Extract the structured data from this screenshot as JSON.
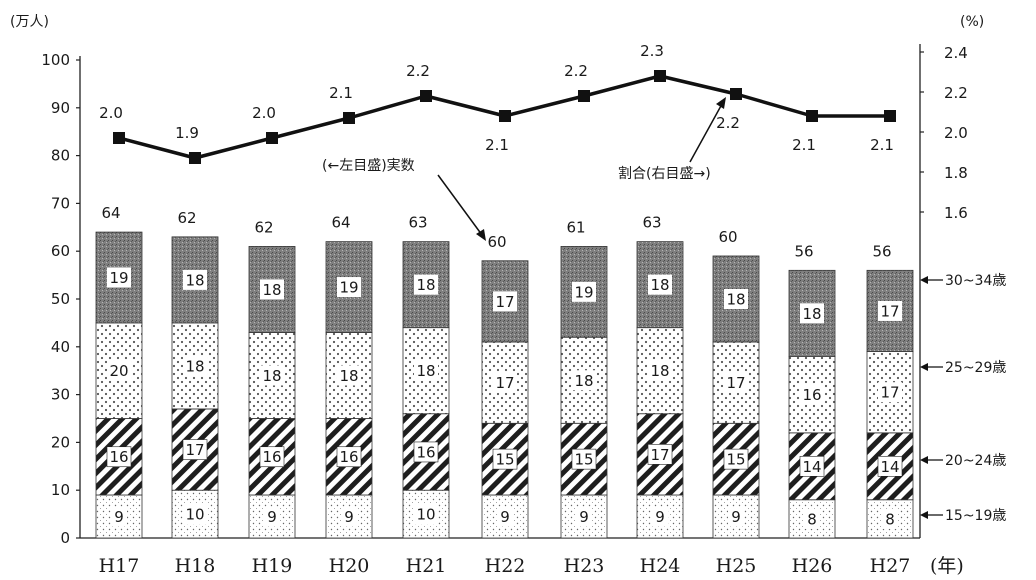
{
  "chart_data": {
    "type": "bar",
    "categories": [
      "H17",
      "H18",
      "H19",
      "H20",
      "H21",
      "H22",
      "H23",
      "H24",
      "H25",
      "H26",
      "H27"
    ],
    "x_unit": "(年)",
    "y_left": {
      "unit": "(万人)",
      "range": [
        0,
        100
      ],
      "ticks": [
        "0",
        "10",
        "20",
        "30",
        "40",
        "50",
        "60",
        "70",
        "80",
        "90",
        "100"
      ]
    },
    "y_right": {
      "unit": "(%)",
      "range": [
        1.5,
        2.4
      ],
      "ticks": [
        "1.6",
        "1.8",
        "2.0",
        "2.2",
        "2.4"
      ]
    },
    "series": [
      {
        "name": "15~19歳",
        "values": [
          9,
          10,
          9,
          9,
          10,
          9,
          9,
          9,
          9,
          8,
          8
        ],
        "color": "#ffffff",
        "pattern": "fine-dots"
      },
      {
        "name": "20~24歳",
        "values": [
          16,
          17,
          16,
          16,
          16,
          15,
          15,
          17,
          15,
          14,
          14
        ],
        "color": "#333333",
        "pattern": "diagonal-stripes"
      },
      {
        "name": "25~29歳",
        "values": [
          20,
          18,
          18,
          18,
          18,
          17,
          18,
          18,
          17,
          16,
          17
        ],
        "color": "#ffffff",
        "pattern": "dots"
      },
      {
        "name": "30~34歳",
        "values": [
          19,
          18,
          18,
          19,
          18,
          17,
          19,
          18,
          18,
          18,
          17
        ],
        "color": "#8c8c8c",
        "pattern": "dark-stipple"
      }
    ],
    "totals": [
      64,
      62,
      62,
      64,
      63,
      60,
      61,
      63,
      60,
      56,
      56
    ],
    "ratio_series": {
      "values": [
        2.0,
        1.9,
        2.0,
        2.1,
        2.2,
        2.1,
        2.2,
        2.3,
        2.2,
        2.1,
        2.1
      ],
      "labels": [
        "2.0",
        "1.9",
        "2.0",
        "2.1",
        "2.2",
        "2.1",
        "2.2",
        "2.3",
        "2.2",
        "2.1",
        "2.1"
      ],
      "plot_values": [
        1.97,
        1.87,
        1.97,
        2.07,
        2.18,
        2.08,
        2.18,
        2.28,
        2.19,
        2.08,
        2.08
      ],
      "color": "#111111"
    },
    "annotations": [
      {
        "text": "(←左目盛)実数"
      },
      {
        "text": "割合(右目盛→)"
      }
    ],
    "legend_placement": "right"
  }
}
